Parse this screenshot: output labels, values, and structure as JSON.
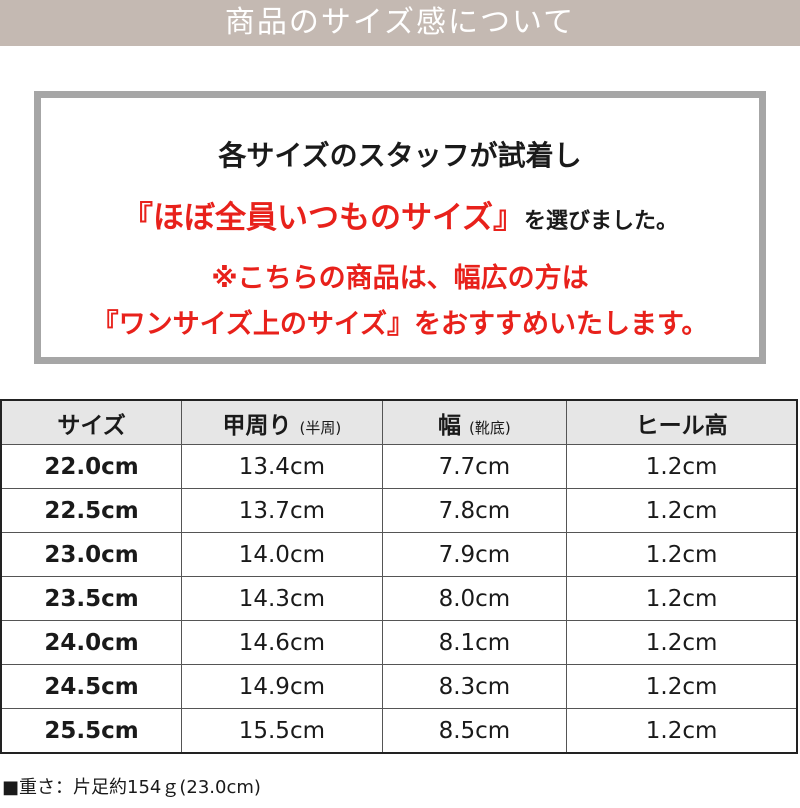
{
  "header": {
    "title": "商品のサイズ感について",
    "band_color": "#c4b9b2"
  },
  "notice": {
    "line1": "各サイズのスタッフが試着し",
    "line2_red": "『ほぼ全員いつものサイズ』",
    "line2_black": "を選びました。",
    "line3": "※こちらの商品は、幅広の方は",
    "line4": "『ワンサイズ上のサイズ』をおすすめいたします。",
    "accent_color": "#e8211b"
  },
  "table": {
    "headers": [
      {
        "label": "サイズ",
        "sub": ""
      },
      {
        "label": "甲周り",
        "sub": "(半周)"
      },
      {
        "label": "幅",
        "sub": "(靴底)"
      },
      {
        "label": "ヒール高",
        "sub": ""
      }
    ],
    "rows": [
      [
        "22.0cm",
        "13.4cm",
        "7.7cm",
        "1.2cm"
      ],
      [
        "22.5cm",
        "13.7cm",
        "7.8cm",
        "1.2cm"
      ],
      [
        "23.0cm",
        "14.0cm",
        "7.9cm",
        "1.2cm"
      ],
      [
        "23.5cm",
        "14.3cm",
        "8.0cm",
        "1.2cm"
      ],
      [
        "24.0cm",
        "14.6cm",
        "8.1cm",
        "1.2cm"
      ],
      [
        "24.5cm",
        "14.9cm",
        "8.3cm",
        "1.2cm"
      ],
      [
        "25.5cm",
        "15.5cm",
        "8.5cm",
        "1.2cm"
      ]
    ]
  },
  "weight_note": "■重さ：片足約154ｇ(23.0cm)"
}
